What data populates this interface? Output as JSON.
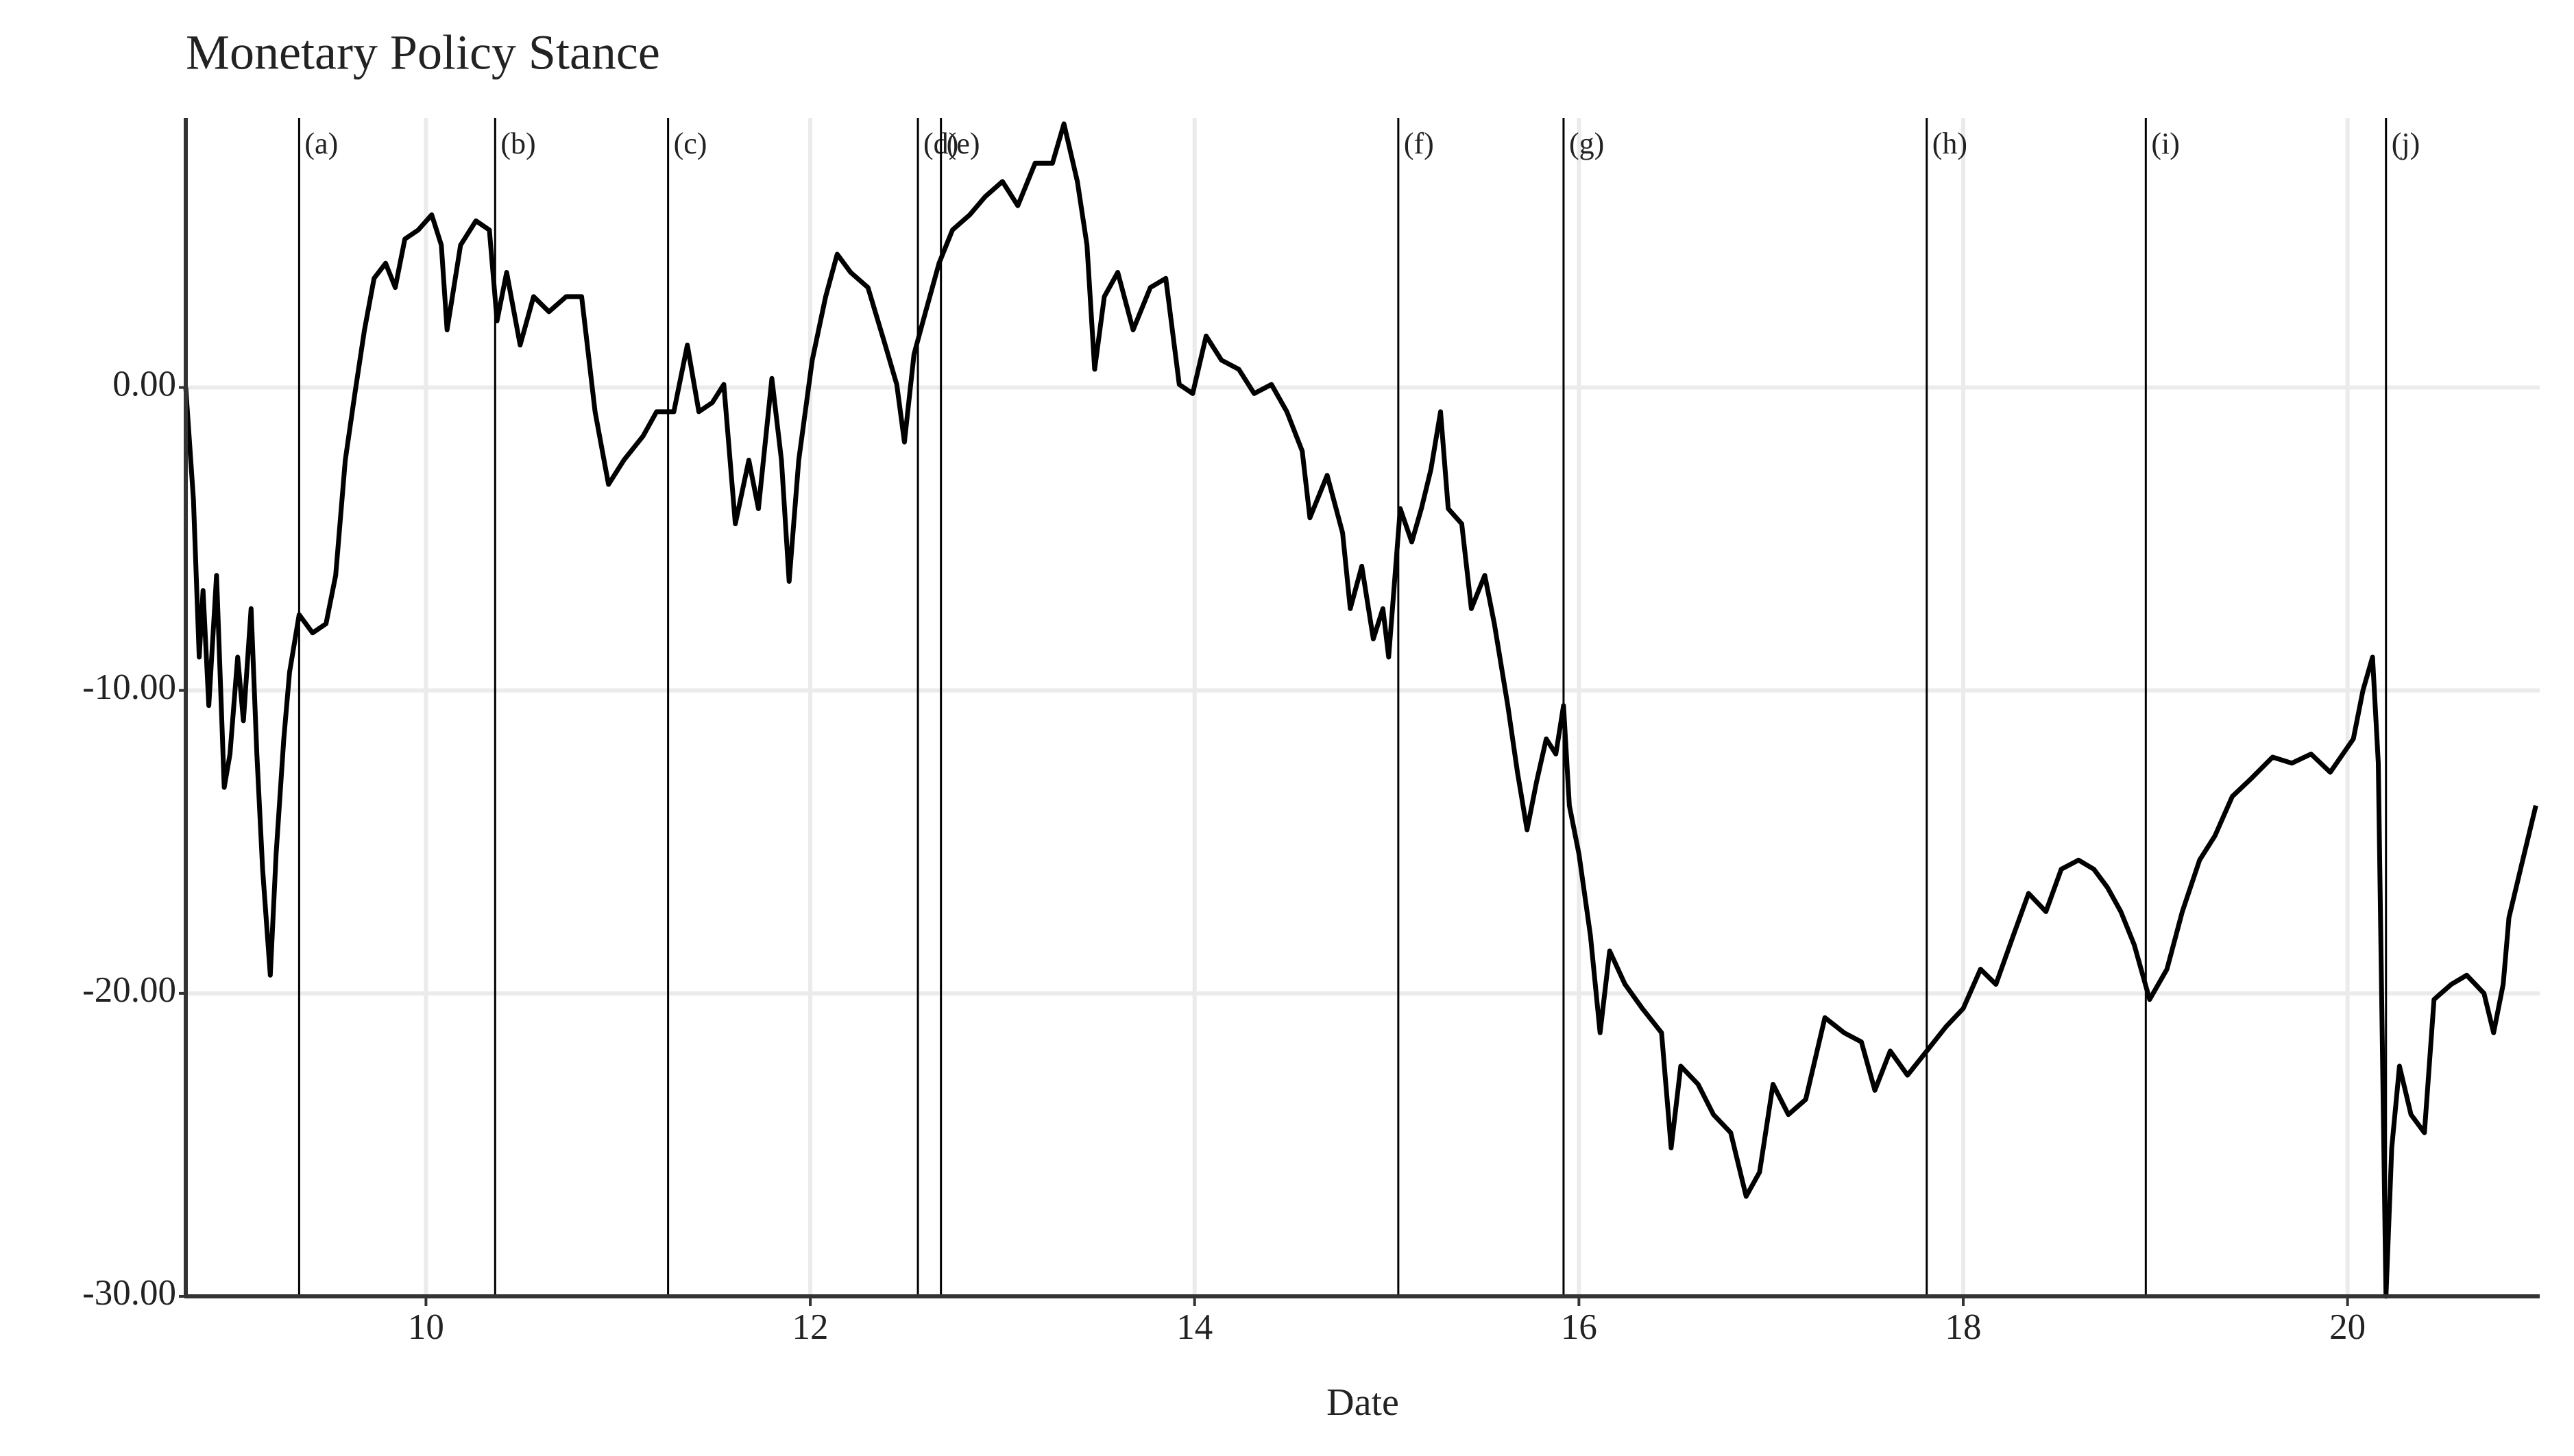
{
  "chart_data": {
    "type": "line",
    "title": "Monetary Policy Stance",
    "x_label": "Date",
    "color": "#000000",
    "grid": true,
    "xlim": [
      8.75,
      21.0
    ],
    "xticks": [
      10,
      12,
      14,
      16,
      18,
      20
    ],
    "ylim": [
      -30,
      8.9
    ],
    "yticks": [
      {
        "value": 0,
        "label": "0.00"
      },
      {
        "value": -10,
        "label": "-10.00"
      },
      {
        "value": -20,
        "label": "-20.00"
      },
      {
        "value": -30,
        "label": "-30.00"
      }
    ],
    "annotations": [
      {
        "x": 9.34,
        "label": "(a)"
      },
      {
        "x": 10.36,
        "label": "(b)"
      },
      {
        "x": 11.26,
        "label": "(c)"
      },
      {
        "x": 12.56,
        "label": "(d)"
      },
      {
        "x": 12.68,
        "label": "(e)"
      },
      {
        "x": 15.06,
        "label": "(f)"
      },
      {
        "x": 15.92,
        "label": "(g)"
      },
      {
        "x": 17.81,
        "label": "(h)"
      },
      {
        "x": 18.95,
        "label": "(i)"
      },
      {
        "x": 20.2,
        "label": "(j)"
      }
    ],
    "x": [
      8.75,
      8.79,
      8.82,
      8.84,
      8.87,
      8.91,
      8.95,
      8.98,
      9.02,
      9.05,
      9.09,
      9.12,
      9.15,
      9.19,
      9.22,
      9.26,
      9.29,
      9.34,
      9.41,
      9.48,
      9.53,
      9.58,
      9.63,
      9.68,
      9.73,
      9.79,
      9.84,
      9.89,
      9.96,
      10.03,
      10.08,
      10.11,
      10.18,
      10.26,
      10.33,
      10.37,
      10.42,
      10.49,
      10.56,
      10.64,
      10.73,
      10.81,
      10.88,
      10.95,
      11.03,
      11.13,
      11.2,
      11.29,
      11.36,
      11.42,
      11.49,
      11.55,
      11.61,
      11.68,
      11.73,
      11.8,
      11.85,
      11.89,
      11.94,
      12.01,
      12.08,
      12.14,
      12.21,
      12.3,
      12.39,
      12.45,
      12.49,
      12.54,
      12.6,
      12.67,
      12.74,
      12.83,
      12.91,
      13.0,
      13.08,
      13.17,
      13.26,
      13.32,
      13.39,
      13.44,
      13.48,
      13.53,
      13.6,
      13.68,
      13.77,
      13.85,
      13.92,
      13.99,
      14.06,
      14.14,
      14.23,
      14.31,
      14.4,
      14.48,
      14.56,
      14.6,
      14.69,
      14.77,
      14.81,
      14.87,
      14.93,
      14.98,
      15.01,
      15.07,
      15.13,
      15.18,
      15.23,
      15.28,
      15.32,
      15.39,
      15.44,
      15.51,
      15.56,
      15.63,
      15.68,
      15.73,
      15.78,
      15.83,
      15.88,
      15.92,
      15.95,
      16.0,
      16.06,
      16.11,
      16.16,
      16.24,
      16.33,
      16.43,
      16.48,
      16.53,
      16.62,
      16.7,
      16.79,
      16.87,
      16.94,
      17.01,
      17.09,
      17.18,
      17.28,
      17.38,
      17.47,
      17.54,
      17.62,
      17.71,
      17.81,
      17.91,
      18.0,
      18.09,
      18.17,
      18.26,
      18.34,
      18.43,
      18.51,
      18.6,
      18.68,
      18.75,
      18.82,
      18.89,
      18.97,
      19.06,
      19.14,
      19.23,
      19.31,
      19.4,
      19.5,
      19.61,
      19.71,
      19.81,
      19.91,
      20.03,
      20.08,
      20.13,
      20.16,
      20.2,
      20.23,
      20.27,
      20.33,
      20.4,
      20.45,
      20.54,
      20.62,
      20.71,
      20.76,
      20.81,
      20.84,
      20.9,
      20.98
    ],
    "values": [
      0,
      -3.7,
      -8.9,
      -6.7,
      -10.5,
      -6.2,
      -13.2,
      -12.1,
      -8.9,
      -11.0,
      -7.3,
      -12.1,
      -15.9,
      -19.4,
      -15.4,
      -11.6,
      -9.4,
      -7.5,
      -8.1,
      -7.8,
      -6.2,
      -2.4,
      -0.2,
      1.9,
      3.6,
      4.1,
      3.3,
      4.9,
      5.2,
      5.7,
      4.7,
      1.9,
      4.7,
      5.5,
      5.2,
      2.2,
      3.8,
      1.4,
      3.0,
      2.5,
      3.0,
      3.0,
      -0.8,
      -3.2,
      -2.4,
      -1.6,
      -0.8,
      -0.8,
      1.4,
      -0.8,
      -0.5,
      0.1,
      -4.5,
      -2.4,
      -4.0,
      0.3,
      -2.4,
      -6.4,
      -2.4,
      0.9,
      3.0,
      4.4,
      3.8,
      3.3,
      1.4,
      0.1,
      -1.8,
      1.1,
      2.5,
      4.1,
      5.2,
      5.7,
      6.3,
      6.8,
      6.0,
      7.4,
      7.4,
      8.7,
      6.8,
      4.7,
      0.6,
      3.0,
      3.8,
      1.9,
      3.3,
      3.6,
      0.1,
      -0.2,
      1.7,
      0.9,
      0.6,
      -0.2,
      0.1,
      -0.8,
      -2.1,
      -4.3,
      -2.9,
      -4.8,
      -7.3,
      -5.9,
      -8.3,
      -7.3,
      -8.9,
      -4.0,
      -5.1,
      -4.0,
      -2.7,
      -0.8,
      -4.0,
      -4.5,
      -7.3,
      -6.2,
      -7.8,
      -10.5,
      -12.7,
      -14.6,
      -13.0,
      -11.6,
      -12.1,
      -10.5,
      -13.8,
      -15.4,
      -18.1,
      -21.3,
      -18.6,
      -19.7,
      -20.5,
      -21.3,
      -25.1,
      -22.4,
      -23.0,
      -24.0,
      -24.6,
      -26.7,
      -25.9,
      -23.0,
      -24.0,
      -23.5,
      -20.8,
      -21.3,
      -21.6,
      -23.2,
      -21.9,
      -22.7,
      -21.9,
      -21.1,
      -20.5,
      -19.2,
      -19.7,
      -18.1,
      -16.7,
      -17.3,
      -15.9,
      -15.6,
      -15.9,
      -16.5,
      -17.3,
      -18.4,
      -20.2,
      -19.2,
      -17.3,
      -15.6,
      -14.8,
      -13.5,
      -12.9,
      -12.2,
      -12.4,
      -12.1,
      -12.7,
      -11.6,
      -10.0,
      -8.9,
      -12.4,
      -30.0,
      -25.1,
      -22.4,
      -24.0,
      -24.6,
      -20.2,
      -19.7,
      -19.4,
      -20.0,
      -21.3,
      -19.7,
      -17.5,
      -15.9,
      -13.8
    ]
  }
}
